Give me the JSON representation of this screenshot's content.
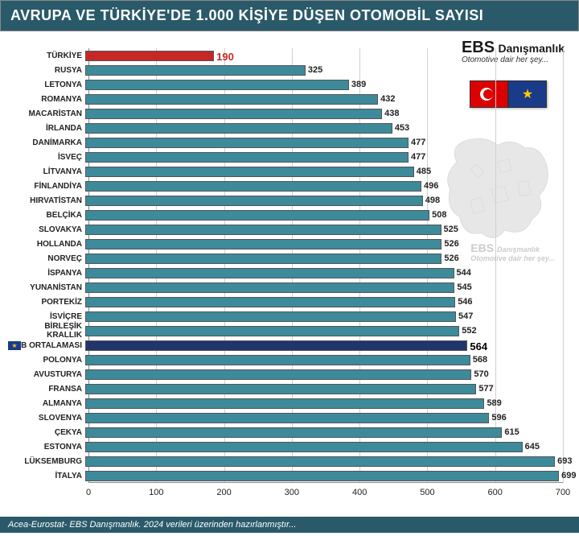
{
  "title": "AVRUPA VE TÜRKİYE'DE 1.000 KİŞİYE DÜŞEN OTOMOBİL SAYISI",
  "logo": {
    "main": "EBS",
    "sub": "Danışmanlık",
    "tagline": "Otomotive dair her şey..."
  },
  "footer": "Acea-Eurostat- EBS Danışmanlık. 2024 verileri üzerinden hazırlanmıştır...",
  "chart": {
    "type": "bar-horizontal",
    "x_max": 700,
    "x_ticks": [
      0,
      100,
      200,
      300,
      400,
      500,
      600,
      700
    ],
    "bar_default_color": "#3d8a9a",
    "bar_border": "#555555",
    "grid_color": "#d0d0d0",
    "rows": [
      {
        "label": "TÜRKİYE",
        "value": 190,
        "color": "#c62828",
        "value_color": "#c62828",
        "bold": true
      },
      {
        "label": "RUSYA",
        "value": 325
      },
      {
        "label": "LETONYA",
        "value": 389
      },
      {
        "label": "ROMANYA",
        "value": 432
      },
      {
        "label": "MACARİSTAN",
        "value": 438
      },
      {
        "label": "İRLANDA",
        "value": 453
      },
      {
        "label": "DANİMARKA",
        "value": 477
      },
      {
        "label": "İSVEÇ",
        "value": 477
      },
      {
        "label": "LİTVANYA",
        "value": 485
      },
      {
        "label": "FİNLANDİYA",
        "value": 496
      },
      {
        "label": "HIRVATİSTAN",
        "value": 498
      },
      {
        "label": "BELÇİKA",
        "value": 508
      },
      {
        "label": "SLOVAKYA",
        "value": 525
      },
      {
        "label": "HOLLANDA",
        "value": 526
      },
      {
        "label": "NORVEÇ",
        "value": 526
      },
      {
        "label": "İSPANYA",
        "value": 544
      },
      {
        "label": "YUNANİSTAN",
        "value": 545
      },
      {
        "label": "PORTEKİZ",
        "value": 546
      },
      {
        "label": "İSVİÇRE",
        "value": 547
      },
      {
        "label": "BİRLEŞİK KRALLIK",
        "value": 552
      },
      {
        "label": "AB ORTALAMASI",
        "value": 564,
        "color": "#22356b",
        "value_color": "#000000",
        "bold": true,
        "flag": "eu"
      },
      {
        "label": "POLONYA",
        "value": 568
      },
      {
        "label": "AVUSTURYA",
        "value": 570
      },
      {
        "label": "FRANSA",
        "value": 577
      },
      {
        "label": "ALMANYA",
        "value": 589
      },
      {
        "label": "SLOVENYA",
        "value": 596
      },
      {
        "label": "ÇEKYA",
        "value": 615
      },
      {
        "label": "ESTONYA",
        "value": 645
      },
      {
        "label": "LÜKSEMBURG",
        "value": 693
      },
      {
        "label": "İTALYA",
        "value": 699
      }
    ]
  }
}
